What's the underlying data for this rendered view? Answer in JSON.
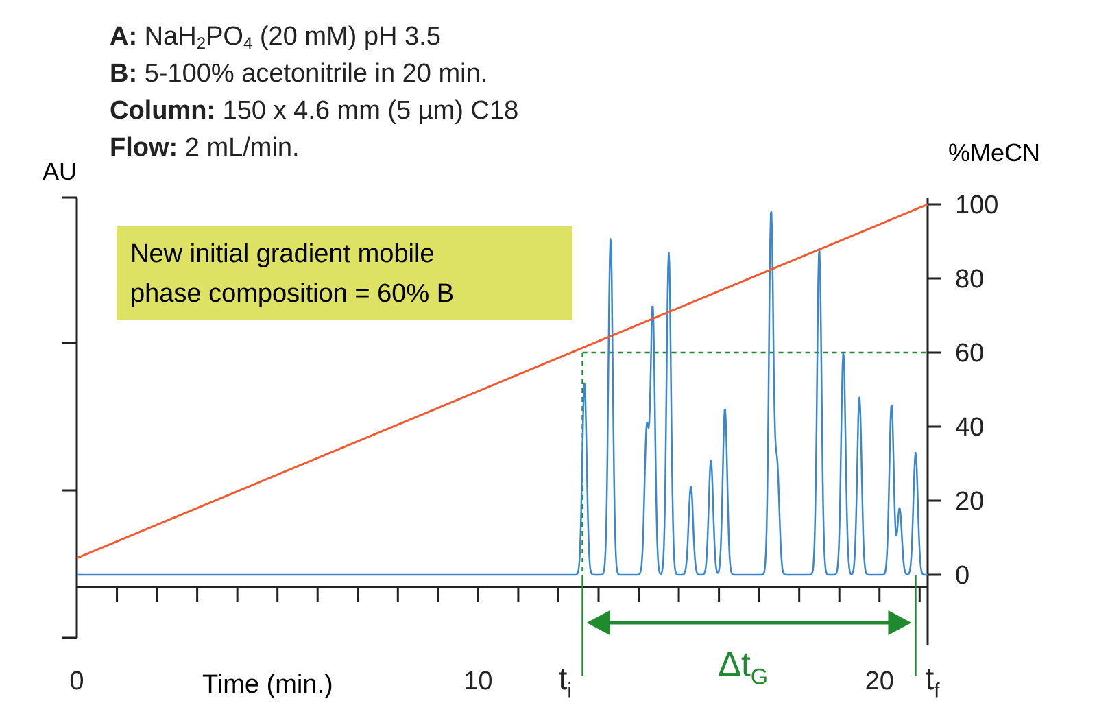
{
  "conditions": {
    "a_label": "A:",
    "a_prefix": "NaH",
    "a_sub1": "2",
    "a_mid": "PO",
    "a_sub2": "4",
    "a_suffix": " (20 mM) pH 3.5",
    "b_label": "B:",
    "b_text": " 5-100% acetonitrile in 20 min.",
    "column_label": "Column:",
    "column_text": " 150 x 4.6 mm (5 µm) C18",
    "flow_label": "Flow:",
    "flow_text": " 2 mL/min."
  },
  "colors": {
    "chromatogram": "#3a87d0",
    "gradient": "#f05a2e",
    "annotation": "#1f8a2e",
    "box_fill": "#dde164",
    "axis": "#222222"
  },
  "chart_data": {
    "type": "line",
    "left_axis_label": "AU",
    "right_axis_label": "%MeCN",
    "xlabel": "Time (min.)",
    "xlim": [
      0,
      21.2
    ],
    "x_tick_labels": [
      "0",
      "10",
      "20"
    ],
    "right_ylim": [
      0,
      100
    ],
    "right_tick_labels": [
      "0",
      "20",
      "40",
      "60",
      "80",
      "100"
    ],
    "gradient_line": {
      "x": [
        0,
        21.2
      ],
      "y": [
        4.5,
        100
      ]
    },
    "ti": 12.6,
    "tf": 20.9,
    "ti_label": "t",
    "ti_sub": "i",
    "tf_label": "t",
    "tf_sub": "f",
    "delta_label": "Δt",
    "delta_sub": "G",
    "initial_b_percent": 60,
    "annotation_line1": "New initial gradient mobile",
    "annotation_line2": "phase composition = 60% B",
    "peaks": [
      {
        "t": 12.65,
        "h": 52
      },
      {
        "t": 13.3,
        "h": 91
      },
      {
        "t": 14.2,
        "h": 39
      },
      {
        "t": 14.35,
        "h": 72
      },
      {
        "t": 14.75,
        "h": 87
      },
      {
        "t": 15.3,
        "h": 24
      },
      {
        "t": 15.8,
        "h": 31
      },
      {
        "t": 16.15,
        "h": 45
      },
      {
        "t": 17.3,
        "h": 98
      },
      {
        "t": 17.45,
        "h": 29
      },
      {
        "t": 18.5,
        "h": 88
      },
      {
        "t": 19.1,
        "h": 60
      },
      {
        "t": 19.5,
        "h": 48
      },
      {
        "t": 20.3,
        "h": 46
      },
      {
        "t": 20.5,
        "h": 18
      },
      {
        "t": 20.9,
        "h": 33
      }
    ]
  }
}
